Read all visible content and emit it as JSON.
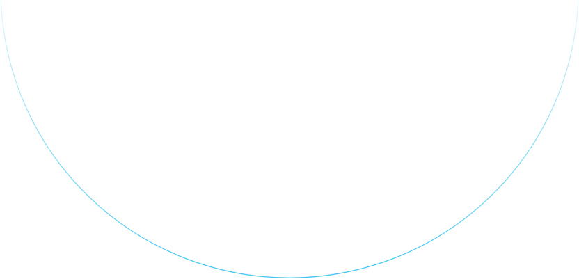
{
  "arc": {
    "stroke_color_bottom": "#3ec6f0",
    "stroke_color_top": "#e6f7fd"
  }
}
